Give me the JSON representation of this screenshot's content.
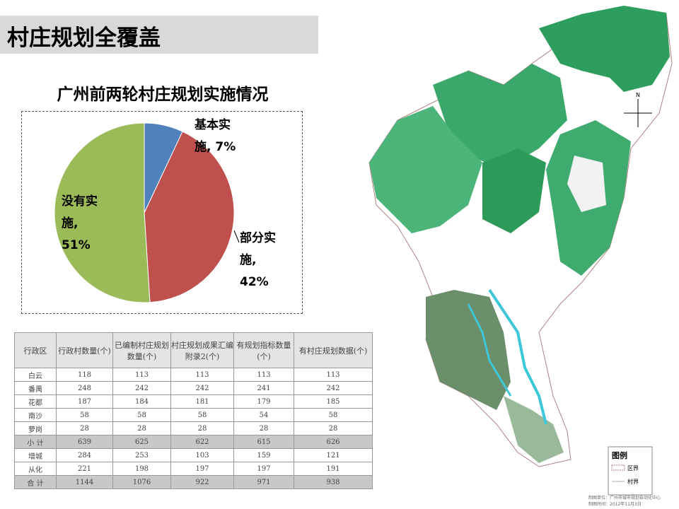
{
  "header": {
    "title": "村庄规划全覆盖"
  },
  "chart_data": {
    "type": "pie",
    "title": "广州前两轮村庄规划实施情况",
    "categories": [
      "基本实施",
      "部分实施",
      "没有实施"
    ],
    "values": [
      7,
      42,
      51
    ],
    "value_labels": [
      "基本实施, 7%",
      "部分实施, 42%",
      "没有实施, 51%"
    ],
    "colors": [
      "#4f81bd",
      "#c0504d",
      "#9bbb59"
    ]
  },
  "table": {
    "header": [
      "行政区",
      "行政村数量(个)",
      "已编制村庄规划数量(个)",
      "村庄规划成果汇编附录2(个)",
      "有规划指标数量(个)",
      "有村庄规划数据(个)"
    ],
    "rows": [
      [
        "白云",
        118,
        113,
        113,
        113,
        113
      ],
      [
        "番禺",
        248,
        242,
        242,
        241,
        242
      ],
      [
        "花都",
        187,
        184,
        181,
        179,
        185
      ],
      [
        "南沙",
        58,
        58,
        58,
        54,
        58
      ],
      [
        "萝岗",
        28,
        28,
        28,
        28,
        28
      ],
      [
        "小 计",
        639,
        625,
        622,
        615,
        626
      ],
      [
        "增城",
        284,
        253,
        103,
        159,
        121
      ],
      [
        "从化",
        221,
        198,
        197,
        197,
        191
      ],
      [
        "合 计",
        1144,
        1076,
        922,
        971,
        938
      ]
    ]
  },
  "map": {
    "north": "N",
    "legend_title": "图例",
    "legend_items": [
      "区界",
      "村界"
    ],
    "credits": [
      "制图单位：广州市城市规划自动化中心",
      "制图时间：2012年11月3日"
    ]
  }
}
